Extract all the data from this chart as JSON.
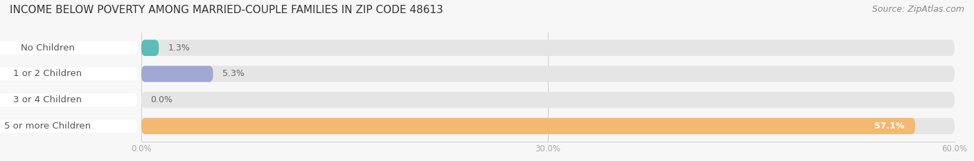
{
  "title": "INCOME BELOW POVERTY AMONG MARRIED-COUPLE FAMILIES IN ZIP CODE 48613",
  "source": "Source: ZipAtlas.com",
  "categories": [
    "No Children",
    "1 or 2 Children",
    "3 or 4 Children",
    "5 or more Children"
  ],
  "values": [
    1.3,
    5.3,
    0.0,
    57.1
  ],
  "bar_colors": [
    "#5bbcb8",
    "#a0a8d4",
    "#f4a0b5",
    "#f5b870"
  ],
  "xlim": [
    0,
    60
  ],
  "xticks": [
    0.0,
    30.0,
    60.0
  ],
  "xtick_labels": [
    "0.0%",
    "30.0%",
    "60.0%"
  ],
  "bar_height": 0.62,
  "background_color": "#f7f7f7",
  "bar_bg_color": "#e5e5e5",
  "title_fontsize": 11,
  "label_fontsize": 9.5,
  "value_fontsize": 9,
  "source_fontsize": 9,
  "pill_text_color": "#555555",
  "value_text_color_outside": "#666666",
  "value_text_color_inside": "#ffffff"
}
